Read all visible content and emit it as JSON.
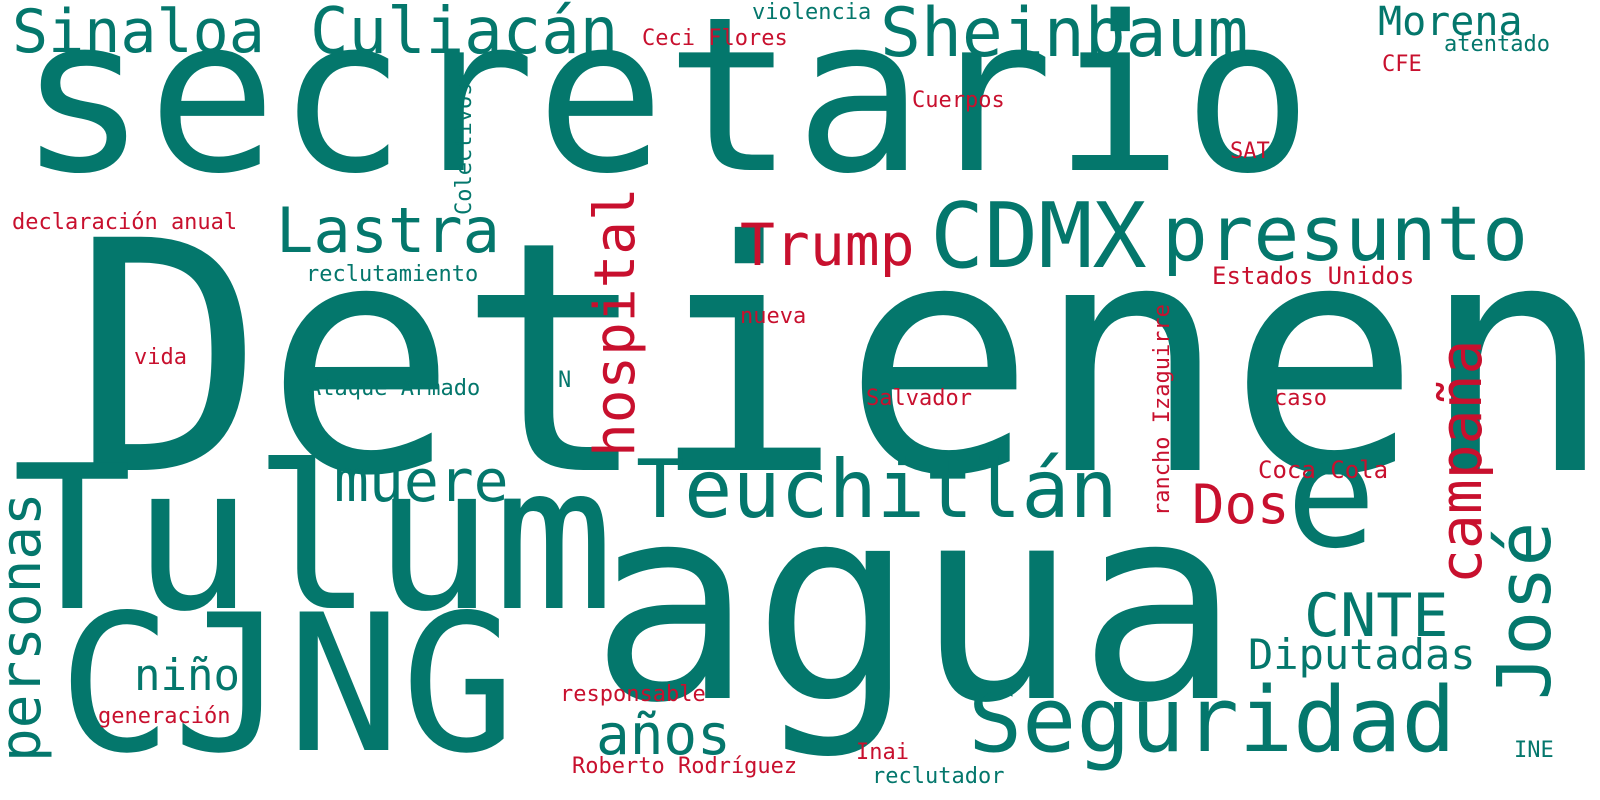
{
  "palette": {
    "teal": "#04776c",
    "red": "#c8102e",
    "background": "#ffffff"
  },
  "words": {
    "secretario": "secretario",
    "detienen": "Detienen",
    "agua": "agua",
    "tulum": "Tulum",
    "cjng": "CJNG",
    "sinaloa": "Sinaloa",
    "culiacan": "Culiacán",
    "sheinbaum": "Sheinbaum",
    "morena": "Morena",
    "atentado": "atentado",
    "violencia": "violencia",
    "ceci_flores": "Ceci Flores",
    "cfe": "CFE",
    "cuerpos": "Cuerpos",
    "sat": "SAT",
    "colectivos": "Colectivos",
    "declaracion_anual": "declaración anual",
    "lastra": "Lastra",
    "trump": "Trump",
    "cdmx": "CDMX",
    "presunto": "presunto",
    "hospital": "hospital",
    "reclutamiento": "reclutamiento",
    "estados_unidos": "Estados Unidos",
    "nueva": "nueva",
    "rancho_izaguirre": "rancho Izaguirre",
    "vida": "vida",
    "ataque_armado": "Ataque Armado",
    "n": "N",
    "salvador": "Salvador",
    "caso": "caso",
    "campana": "campaña",
    "e": "e",
    "muere": "muere",
    "teuchitlan": "Teuchitlán",
    "dos": "Dos",
    "coca_cola": "Coca Cola",
    "personas": "personas",
    "jose": "José",
    "cnte": "CNTE",
    "diputadas": "Diputadas",
    "nino": "niño",
    "anos": "años",
    "seguridad": "Seguridad",
    "responsable": "responsable",
    "generacion": "generación",
    "roberto_rodriguez": "Roberto Rodríguez",
    "inai": "Inai",
    "reclutador": "reclutador",
    "ine": "INE"
  }
}
